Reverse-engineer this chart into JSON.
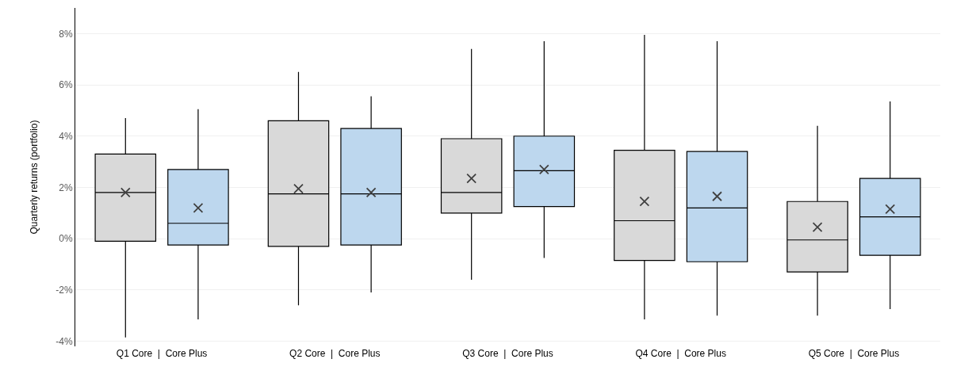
{
  "chart_data": {
    "type": "box",
    "ylabel": "Quarterly returns (portfolio)",
    "categories": [
      "Q1 Core  |  Core Plus",
      "Q2 Core  |  Core Plus",
      "Q3 Core  |  Core Plus",
      "Q4 Core  |  Core Plus",
      "Q5 Core  |  Core Plus"
    ],
    "series": [
      {
        "color": "#d9d9d9",
        "boxes": [
          {
            "low": -3.85,
            "q1": -0.1,
            "median": 1.8,
            "q3": 3.3,
            "high": 4.7,
            "mean": 1.8
          },
          {
            "low": -2.6,
            "q1": -0.3,
            "median": 1.75,
            "q3": 4.6,
            "high": 6.5,
            "mean": 1.95
          },
          {
            "low": -1.6,
            "q1": 1.0,
            "median": 1.8,
            "q3": 3.9,
            "high": 7.4,
            "mean": 2.35
          },
          {
            "low": -3.15,
            "q1": -0.85,
            "median": 0.7,
            "q3": 3.45,
            "high": 7.95,
            "mean": 1.45
          },
          {
            "low": -3.0,
            "q1": -1.3,
            "median": -0.05,
            "q3": 1.45,
            "high": 4.4,
            "mean": 0.45
          }
        ]
      },
      {
        "color": "#bdd7ee",
        "boxes": [
          {
            "low": -3.15,
            "q1": -0.25,
            "median": 0.6,
            "q3": 2.7,
            "high": 5.05,
            "mean": 1.2
          },
          {
            "low": -2.1,
            "q1": -0.25,
            "median": 1.75,
            "q3": 4.3,
            "high": 5.55,
            "mean": 1.8
          },
          {
            "low": -0.75,
            "q1": 1.25,
            "median": 2.65,
            "q3": 4.0,
            "high": 7.7,
            "mean": 2.7
          },
          {
            "low": -3.0,
            "q1": -0.9,
            "median": 1.2,
            "q3": 3.4,
            "high": 7.7,
            "mean": 1.65
          },
          {
            "low": -2.75,
            "q1": -0.65,
            "median": 0.85,
            "q3": 2.35,
            "high": 5.35,
            "mean": 1.15
          }
        ]
      }
    ],
    "ylim": [
      -4.2,
      9
    ],
    "yticks": [
      {
        "value": -4,
        "label": "-4%"
      },
      {
        "value": -2,
        "label": "-2%"
      },
      {
        "value": 0,
        "label": "0%"
      },
      {
        "value": 2,
        "label": "2%"
      },
      {
        "value": 4,
        "label": "4%"
      },
      {
        "value": 6,
        "label": "6%"
      },
      {
        "value": 8,
        "label": "8%"
      }
    ],
    "grid": "y",
    "marker": "cross"
  }
}
